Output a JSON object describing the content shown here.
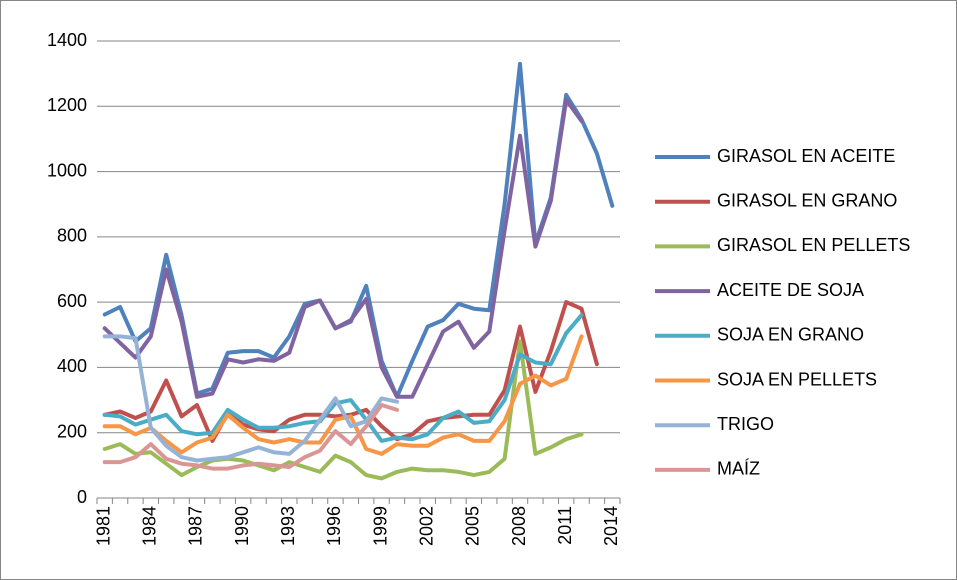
{
  "chart_data": {
    "type": "line",
    "categories": [
      "1981",
      null,
      null,
      "1984",
      null,
      null,
      "1987",
      null,
      null,
      "1990",
      null,
      null,
      "1993",
      null,
      null,
      "1996",
      null,
      null,
      "1999",
      null,
      null,
      "2002",
      null,
      null,
      "2005",
      null,
      null,
      "2008",
      null,
      null,
      "2011",
      null,
      null,
      "2014"
    ],
    "ylim": [
      0,
      1400
    ],
    "yticks": [
      0,
      200,
      400,
      600,
      800,
      1000,
      1200,
      1400
    ],
    "grid": true,
    "legend": "right",
    "series": [
      {
        "name": "GIRASOL EN ACEITE",
        "color": "#4f81bd",
        "values": [
          562,
          585,
          480,
          520,
          745,
          560,
          320,
          335,
          445,
          450,
          450,
          430,
          495,
          595,
          605,
          520,
          540,
          650,
          420,
          310,
          420,
          525,
          545,
          595,
          580,
          575,
          900,
          1330,
          780,
          920,
          1235,
          1160,
          1055,
          895
        ]
      },
      {
        "name": "GIRASOL EN GRANO",
        "color": "#c0504d",
        "values": [
          255,
          265,
          245,
          265,
          360,
          250,
          285,
          175,
          260,
          225,
          210,
          205,
          240,
          255,
          255,
          250,
          255,
          270,
          220,
          180,
          195,
          235,
          245,
          250,
          255,
          255,
          330,
          525,
          325,
          450,
          600,
          580,
          410,
          null
        ]
      },
      {
        "name": "GIRASOL EN PELLETS",
        "color": "#9bbb59",
        "values": [
          150,
          165,
          135,
          140,
          105,
          70,
          95,
          115,
          120,
          115,
          100,
          85,
          110,
          95,
          80,
          130,
          110,
          70,
          60,
          80,
          90,
          85,
          85,
          80,
          70,
          80,
          120,
          480,
          135,
          155,
          180,
          195,
          null,
          null
        ]
      },
      {
        "name": "ACEITE DE SOJA",
        "color": "#8064a2",
        "values": [
          520,
          475,
          430,
          495,
          700,
          540,
          310,
          320,
          425,
          415,
          425,
          420,
          445,
          585,
          605,
          520,
          545,
          610,
          400,
          310,
          310,
          410,
          510,
          540,
          460,
          510,
          820,
          1110,
          770,
          910,
          1220,
          1155,
          null,
          null
        ]
      },
      {
        "name": "SOJA EN GRANO",
        "color": "#4bacc6",
        "values": [
          255,
          250,
          225,
          240,
          255,
          205,
          195,
          200,
          270,
          240,
          215,
          215,
          220,
          230,
          235,
          290,
          300,
          240,
          175,
          185,
          180,
          195,
          245,
          265,
          230,
          235,
          300,
          440,
          415,
          410,
          505,
          560,
          null,
          null
        ]
      },
      {
        "name": "SOJA EN PELLETS",
        "color": "#f79646",
        "values": [
          220,
          220,
          195,
          215,
          175,
          140,
          170,
          185,
          255,
          215,
          180,
          170,
          180,
          170,
          170,
          240,
          250,
          150,
          135,
          165,
          160,
          160,
          185,
          195,
          175,
          175,
          235,
          350,
          375,
          345,
          365,
          495,
          null,
          null
        ]
      },
      {
        "name": "TRIGO",
        "color": "#95b3d7",
        "values": [
          495,
          495,
          490,
          215,
          160,
          125,
          115,
          120,
          125,
          140,
          155,
          140,
          135,
          175,
          240,
          305,
          220,
          235,
          305,
          295,
          null,
          null,
          null,
          null,
          null,
          null,
          null,
          null,
          null,
          null,
          null,
          null,
          null,
          null
        ]
      },
      {
        "name": "MAÍZ",
        "color": "#d99694",
        "values": [
          110,
          110,
          125,
          165,
          120,
          105,
          100,
          90,
          90,
          100,
          105,
          100,
          95,
          125,
          145,
          205,
          165,
          220,
          285,
          270,
          null,
          null,
          null,
          null,
          null,
          null,
          null,
          null,
          null,
          null,
          null,
          null,
          null,
          null
        ]
      }
    ]
  }
}
